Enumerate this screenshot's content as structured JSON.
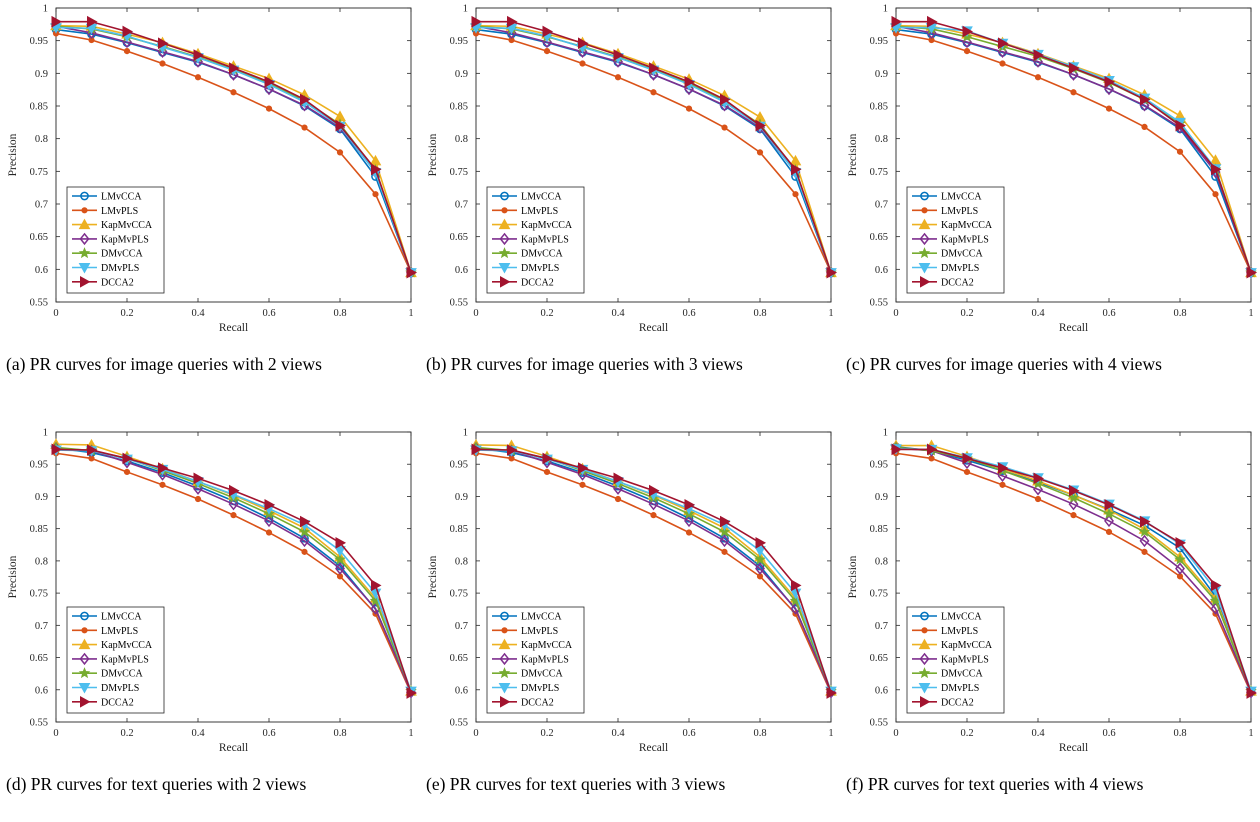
{
  "colors": {
    "LMvCCA": "#0072BD",
    "LMvPLS": "#D95319",
    "KapMvCCA": "#EDB120",
    "KapMvPLS": "#7E2F8E",
    "DMvCCA": "#77AC30",
    "DMvPLS": "#4DBEEE",
    "DCCA2": "#A2142F"
  },
  "markers": {
    "LMvCCA": "circle-icon",
    "LMvPLS": "dot-icon",
    "KapMvCCA": "triangle-up-icon",
    "KapMvPLS": "diamond-icon",
    "DMvCCA": "star-icon",
    "DMvPLS": "triangle-down-icon",
    "DCCA2": "triangle-right-icon"
  },
  "captions": [
    "(a) PR curves for image queries with 2 views",
    "(b) PR curves for image queries with 3 views",
    "(c) PR curves for image queries with 4 views",
    "(d) PR curves for text queries with 2 views",
    "(e) PR curves for text queries with 3 views",
    "(f) PR curves for text queries with 4 views"
  ],
  "chart_data": [
    {
      "type": "line",
      "xlabel": "Recall",
      "ylabel": "Precision",
      "xlim": [
        0,
        1
      ],
      "ylim": [
        0.55,
        1
      ],
      "xticks": [
        "0",
        "0.2",
        "0.4",
        "0.6",
        "0.8",
        "1"
      ],
      "yticks": [
        "0.55",
        "0.6",
        "0.65",
        "0.7",
        "0.75",
        "0.8",
        "0.85",
        "0.9",
        "0.95",
        "1"
      ],
      "legend_position": "bottom-left",
      "grid": false,
      "x": [
        0,
        0.1,
        0.2,
        0.3,
        0.4,
        0.5,
        0.6,
        0.7,
        0.8,
        0.9,
        1
      ],
      "series": [
        {
          "name": "LMvCCA",
          "values": [
            0.967,
            0.96,
            0.947,
            0.932,
            0.917,
            0.898,
            0.876,
            0.85,
            0.815,
            0.742,
            0.595
          ]
        },
        {
          "name": "LMvPLS",
          "values": [
            0.961,
            0.951,
            0.934,
            0.915,
            0.894,
            0.871,
            0.846,
            0.817,
            0.779,
            0.715,
            0.595
          ]
        },
        {
          "name": "KapMvCCA",
          "values": [
            0.973,
            0.972,
            0.96,
            0.947,
            0.93,
            0.911,
            0.892,
            0.867,
            0.834,
            0.766,
            0.595
          ]
        },
        {
          "name": "KapMvPLS",
          "values": [
            0.972,
            0.962,
            0.948,
            0.933,
            0.918,
            0.898,
            0.876,
            0.851,
            0.817,
            0.749,
            0.595
          ]
        },
        {
          "name": "DMvCCA",
          "values": [
            0.972,
            0.968,
            0.956,
            0.941,
            0.925,
            0.906,
            0.885,
            0.858,
            0.822,
            0.752,
            0.595
          ]
        },
        {
          "name": "DMvPLS",
          "values": [
            0.97,
            0.969,
            0.957,
            0.94,
            0.924,
            0.905,
            0.883,
            0.856,
            0.819,
            0.748,
            0.595
          ]
        },
        {
          "name": "DCCA2",
          "values": [
            0.979,
            0.979,
            0.964,
            0.946,
            0.928,
            0.908,
            0.887,
            0.86,
            0.82,
            0.753,
            0.595
          ]
        }
      ]
    },
    {
      "type": "line",
      "xlabel": "Recall",
      "ylabel": "Precision",
      "xlim": [
        0,
        1
      ],
      "ylim": [
        0.55,
        1
      ],
      "xticks": [
        "0",
        "0.2",
        "0.4",
        "0.6",
        "0.8",
        "1"
      ],
      "yticks": [
        "0.55",
        "0.6",
        "0.65",
        "0.7",
        "0.75",
        "0.8",
        "0.85",
        "0.9",
        "0.95",
        "1"
      ],
      "legend_position": "bottom-left",
      "grid": false,
      "x": [
        0,
        0.1,
        0.2,
        0.3,
        0.4,
        0.5,
        0.6,
        0.7,
        0.8,
        0.9,
        1
      ],
      "series": [
        {
          "name": "LMvCCA",
          "values": [
            0.967,
            0.96,
            0.947,
            0.932,
            0.917,
            0.898,
            0.876,
            0.85,
            0.815,
            0.742,
            0.595
          ]
        },
        {
          "name": "LMvPLS",
          "values": [
            0.961,
            0.951,
            0.934,
            0.915,
            0.894,
            0.871,
            0.846,
            0.817,
            0.779,
            0.715,
            0.595
          ]
        },
        {
          "name": "KapMvCCA",
          "values": [
            0.973,
            0.972,
            0.96,
            0.947,
            0.93,
            0.911,
            0.891,
            0.866,
            0.833,
            0.766,
            0.595
          ]
        },
        {
          "name": "KapMvPLS",
          "values": [
            0.972,
            0.962,
            0.948,
            0.933,
            0.918,
            0.898,
            0.876,
            0.851,
            0.817,
            0.749,
            0.595
          ]
        },
        {
          "name": "DMvCCA",
          "values": [
            0.972,
            0.968,
            0.956,
            0.941,
            0.925,
            0.906,
            0.885,
            0.858,
            0.822,
            0.752,
            0.595
          ]
        },
        {
          "name": "DMvPLS",
          "values": [
            0.97,
            0.969,
            0.957,
            0.94,
            0.924,
            0.905,
            0.883,
            0.856,
            0.819,
            0.748,
            0.595
          ]
        },
        {
          "name": "DCCA2",
          "values": [
            0.979,
            0.979,
            0.964,
            0.946,
            0.928,
            0.908,
            0.887,
            0.86,
            0.82,
            0.753,
            0.595
          ]
        }
      ]
    },
    {
      "type": "line",
      "xlabel": "Recall",
      "ylabel": "Precision",
      "xlim": [
        0,
        1
      ],
      "ylim": [
        0.55,
        1
      ],
      "xticks": [
        "0",
        "0.2",
        "0.4",
        "0.6",
        "0.8",
        "1"
      ],
      "yticks": [
        "0.55",
        "0.6",
        "0.65",
        "0.7",
        "0.75",
        "0.8",
        "0.85",
        "0.9",
        "0.95",
        "1"
      ],
      "legend_position": "bottom-left",
      "grid": false,
      "x": [
        0,
        0.1,
        0.2,
        0.3,
        0.4,
        0.5,
        0.6,
        0.7,
        0.8,
        0.9,
        1
      ],
      "series": [
        {
          "name": "LMvCCA",
          "values": [
            0.967,
            0.96,
            0.947,
            0.932,
            0.917,
            0.898,
            0.876,
            0.85,
            0.815,
            0.742,
            0.595
          ]
        },
        {
          "name": "LMvPLS",
          "values": [
            0.961,
            0.951,
            0.934,
            0.915,
            0.894,
            0.871,
            0.846,
            0.818,
            0.78,
            0.715,
            0.595
          ]
        },
        {
          "name": "KapMvCCA",
          "values": [
            0.973,
            0.972,
            0.96,
            0.947,
            0.93,
            0.911,
            0.892,
            0.867,
            0.835,
            0.767,
            0.595
          ]
        },
        {
          "name": "KapMvPLS",
          "values": [
            0.972,
            0.962,
            0.948,
            0.933,
            0.918,
            0.898,
            0.876,
            0.851,
            0.817,
            0.749,
            0.595
          ]
        },
        {
          "name": "DMvCCA",
          "values": [
            0.972,
            0.968,
            0.956,
            0.941,
            0.926,
            0.907,
            0.886,
            0.86,
            0.823,
            0.753,
            0.595
          ]
        },
        {
          "name": "DMvPLS",
          "values": [
            0.97,
            0.97,
            0.965,
            0.946,
            0.929,
            0.91,
            0.889,
            0.862,
            0.825,
            0.754,
            0.595
          ]
        },
        {
          "name": "DCCA2",
          "values": [
            0.979,
            0.979,
            0.964,
            0.946,
            0.928,
            0.908,
            0.887,
            0.86,
            0.82,
            0.753,
            0.595
          ]
        }
      ]
    },
    {
      "type": "line",
      "xlabel": "Recall",
      "ylabel": "Precision",
      "xlim": [
        0,
        1
      ],
      "ylim": [
        0.55,
        1
      ],
      "xticks": [
        "0",
        "0.2",
        "0.4",
        "0.6",
        "0.8",
        "1"
      ],
      "yticks": [
        "0.55",
        "0.6",
        "0.65",
        "0.7",
        "0.75",
        "0.8",
        "0.85",
        "0.9",
        "0.95",
        "1"
      ],
      "legend_position": "bottom-left",
      "grid": false,
      "x": [
        0,
        0.1,
        0.2,
        0.3,
        0.4,
        0.5,
        0.6,
        0.7,
        0.8,
        0.9,
        1
      ],
      "series": [
        {
          "name": "LMvCCA",
          "values": [
            0.975,
            0.968,
            0.955,
            0.937,
            0.916,
            0.893,
            0.866,
            0.835,
            0.792,
            0.725,
            0.598
          ]
        },
        {
          "name": "LMvPLS",
          "values": [
            0.967,
            0.959,
            0.938,
            0.918,
            0.896,
            0.871,
            0.844,
            0.814,
            0.776,
            0.718,
            0.595
          ]
        },
        {
          "name": "KapMvCCA",
          "values": [
            0.981,
            0.98,
            0.962,
            0.943,
            0.923,
            0.902,
            0.878,
            0.851,
            0.806,
            0.742,
            0.598
          ]
        },
        {
          "name": "KapMvPLS",
          "values": [
            0.975,
            0.971,
            0.953,
            0.934,
            0.912,
            0.888,
            0.862,
            0.831,
            0.788,
            0.726,
            0.596
          ]
        },
        {
          "name": "DMvCCA",
          "values": [
            0.976,
            0.971,
            0.959,
            0.94,
            0.92,
            0.898,
            0.873,
            0.845,
            0.802,
            0.738,
            0.598
          ]
        },
        {
          "name": "DMvPLS",
          "values": [
            0.972,
            0.971,
            0.958,
            0.942,
            0.923,
            0.903,
            0.881,
            0.856,
            0.816,
            0.75,
            0.598
          ]
        },
        {
          "name": "DCCA2",
          "values": [
            0.973,
            0.972,
            0.959,
            0.944,
            0.928,
            0.909,
            0.887,
            0.861,
            0.828,
            0.762,
            0.595
          ]
        }
      ]
    },
    {
      "type": "line",
      "xlabel": "Recall",
      "ylabel": "Precision",
      "xlim": [
        0,
        1
      ],
      "ylim": [
        0.55,
        1
      ],
      "xticks": [
        "0",
        "0.2",
        "0.4",
        "0.6",
        "0.8",
        "1"
      ],
      "yticks": [
        "0.55",
        "0.6",
        "0.65",
        "0.7",
        "0.75",
        "0.8",
        "0.85",
        "0.9",
        "0.95",
        "1"
      ],
      "legend_position": "bottom-left",
      "grid": false,
      "x": [
        0,
        0.1,
        0.2,
        0.3,
        0.4,
        0.5,
        0.6,
        0.7,
        0.8,
        0.9,
        1
      ],
      "series": [
        {
          "name": "LMvCCA",
          "values": [
            0.975,
            0.968,
            0.955,
            0.937,
            0.916,
            0.893,
            0.866,
            0.835,
            0.792,
            0.725,
            0.598
          ]
        },
        {
          "name": "LMvPLS",
          "values": [
            0.967,
            0.959,
            0.938,
            0.918,
            0.896,
            0.871,
            0.844,
            0.814,
            0.776,
            0.718,
            0.595
          ]
        },
        {
          "name": "KapMvCCA",
          "values": [
            0.98,
            0.979,
            0.962,
            0.943,
            0.923,
            0.902,
            0.878,
            0.851,
            0.806,
            0.742,
            0.598
          ]
        },
        {
          "name": "KapMvPLS",
          "values": [
            0.975,
            0.971,
            0.953,
            0.934,
            0.912,
            0.888,
            0.862,
            0.831,
            0.788,
            0.726,
            0.596
          ]
        },
        {
          "name": "DMvCCA",
          "values": [
            0.976,
            0.971,
            0.959,
            0.94,
            0.92,
            0.898,
            0.873,
            0.845,
            0.802,
            0.738,
            0.598
          ]
        },
        {
          "name": "DMvPLS",
          "values": [
            0.972,
            0.971,
            0.958,
            0.942,
            0.923,
            0.903,
            0.881,
            0.856,
            0.816,
            0.75,
            0.598
          ]
        },
        {
          "name": "DCCA2",
          "values": [
            0.973,
            0.972,
            0.959,
            0.944,
            0.928,
            0.909,
            0.887,
            0.861,
            0.828,
            0.762,
            0.595
          ]
        }
      ]
    },
    {
      "type": "line",
      "xlabel": "Recall",
      "ylabel": "Precision",
      "xlim": [
        0,
        1
      ],
      "ylim": [
        0.55,
        1
      ],
      "xticks": [
        "0",
        "0.2",
        "0.4",
        "0.6",
        "0.8",
        "1"
      ],
      "yticks": [
        "0.55",
        "0.6",
        "0.65",
        "0.7",
        "0.75",
        "0.8",
        "0.85",
        "0.9",
        "0.95",
        "1"
      ],
      "legend_position": "bottom-left",
      "grid": false,
      "x": [
        0,
        0.1,
        0.2,
        0.3,
        0.4,
        0.5,
        0.6,
        0.7,
        0.8,
        0.9,
        1
      ],
      "series": [
        {
          "name": "LMvCCA",
          "values": [
            0.977,
            0.971,
            0.956,
            0.94,
            0.922,
            0.902,
            0.88,
            0.855,
            0.82,
            0.745,
            0.598
          ]
        },
        {
          "name": "LMvPLS",
          "values": [
            0.967,
            0.959,
            0.938,
            0.918,
            0.896,
            0.871,
            0.845,
            0.814,
            0.776,
            0.718,
            0.595
          ]
        },
        {
          "name": "KapMvCCA",
          "values": [
            0.979,
            0.979,
            0.962,
            0.943,
            0.924,
            0.902,
            0.879,
            0.849,
            0.806,
            0.742,
            0.598
          ]
        },
        {
          "name": "KapMvPLS",
          "values": [
            0.975,
            0.971,
            0.952,
            0.932,
            0.911,
            0.888,
            0.862,
            0.831,
            0.788,
            0.726,
            0.596
          ]
        },
        {
          "name": "DMvCCA",
          "values": [
            0.976,
            0.971,
            0.959,
            0.94,
            0.92,
            0.898,
            0.873,
            0.845,
            0.802,
            0.738,
            0.598
          ]
        },
        {
          "name": "DMvPLS",
          "values": [
            0.974,
            0.973,
            0.96,
            0.946,
            0.929,
            0.91,
            0.888,
            0.862,
            0.826,
            0.755,
            0.598
          ]
        },
        {
          "name": "DCCA2",
          "values": [
            0.973,
            0.973,
            0.959,
            0.944,
            0.928,
            0.909,
            0.887,
            0.861,
            0.828,
            0.762,
            0.595
          ]
        }
      ]
    }
  ]
}
